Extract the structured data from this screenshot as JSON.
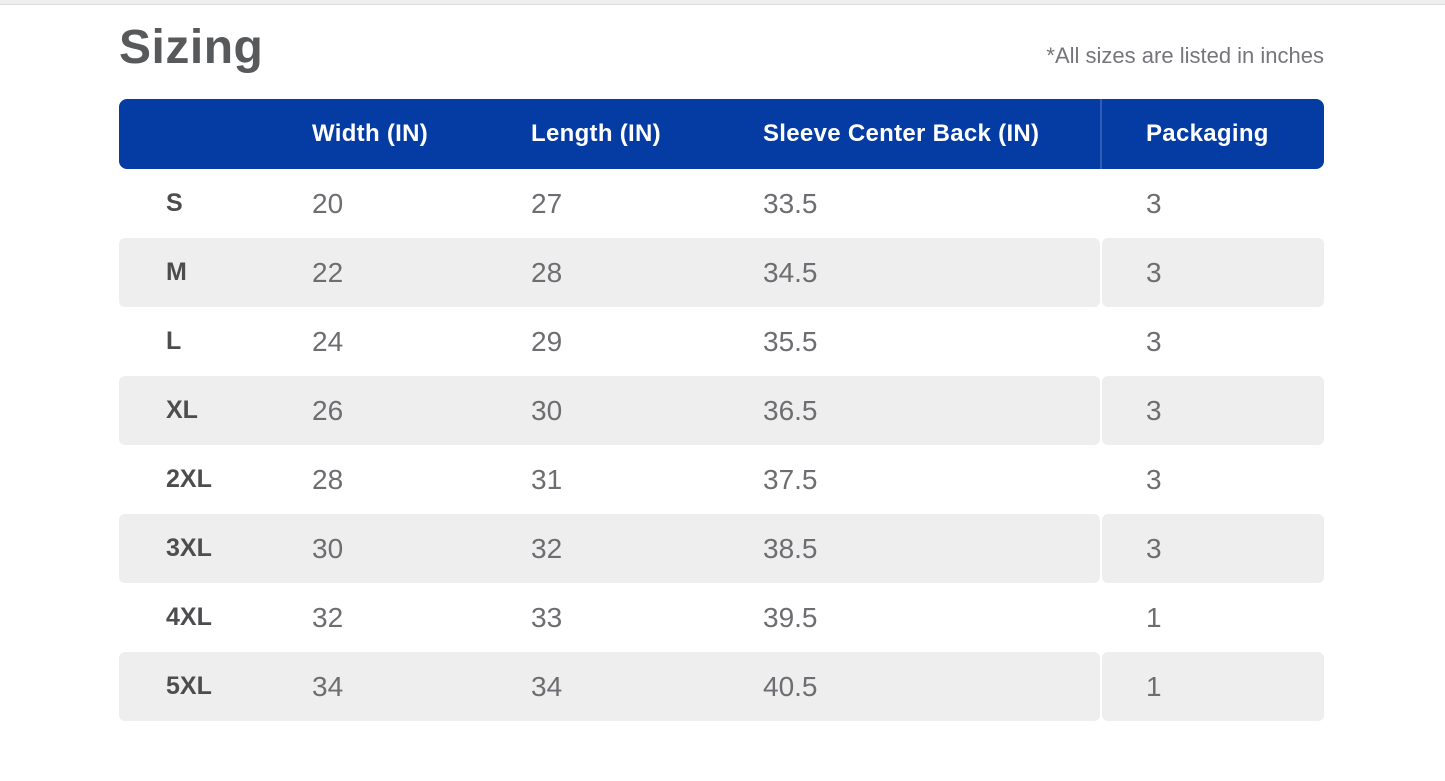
{
  "page": {
    "title": "Sizing",
    "note": "*All sizes are listed in inches"
  },
  "table": {
    "columns": [
      "",
      "Width (IN)",
      "Length (IN)",
      "Sleeve Center Back (IN)",
      "Packaging"
    ],
    "rows": [
      {
        "size": "S",
        "width": "20",
        "length": "27",
        "sleeve": "33.5",
        "packaging": "3"
      },
      {
        "size": "M",
        "width": "22",
        "length": "28",
        "sleeve": "34.5",
        "packaging": "3"
      },
      {
        "size": "L",
        "width": "24",
        "length": "29",
        "sleeve": "35.5",
        "packaging": "3"
      },
      {
        "size": "XL",
        "width": "26",
        "length": "30",
        "sleeve": "36.5",
        "packaging": "3"
      },
      {
        "size": "2XL",
        "width": "28",
        "length": "31",
        "sleeve": "37.5",
        "packaging": "3"
      },
      {
        "size": "3XL",
        "width": "30",
        "length": "32",
        "sleeve": "38.5",
        "packaging": "3"
      },
      {
        "size": "4XL",
        "width": "32",
        "length": "33",
        "sleeve": "39.5",
        "packaging": "1"
      },
      {
        "size": "5XL",
        "width": "34",
        "length": "34",
        "sleeve": "40.5",
        "packaging": "1"
      }
    ]
  },
  "colors": {
    "header_bg": "#053CA4",
    "header_divider": "#2F5CB4",
    "header_text": "#FFFFFF",
    "alt_row_bg": "#EFEEEE",
    "title_text": "#58595B",
    "note_text": "#75767A",
    "size_text": "#4D4D4F",
    "value_text": "#6D6E71"
  }
}
